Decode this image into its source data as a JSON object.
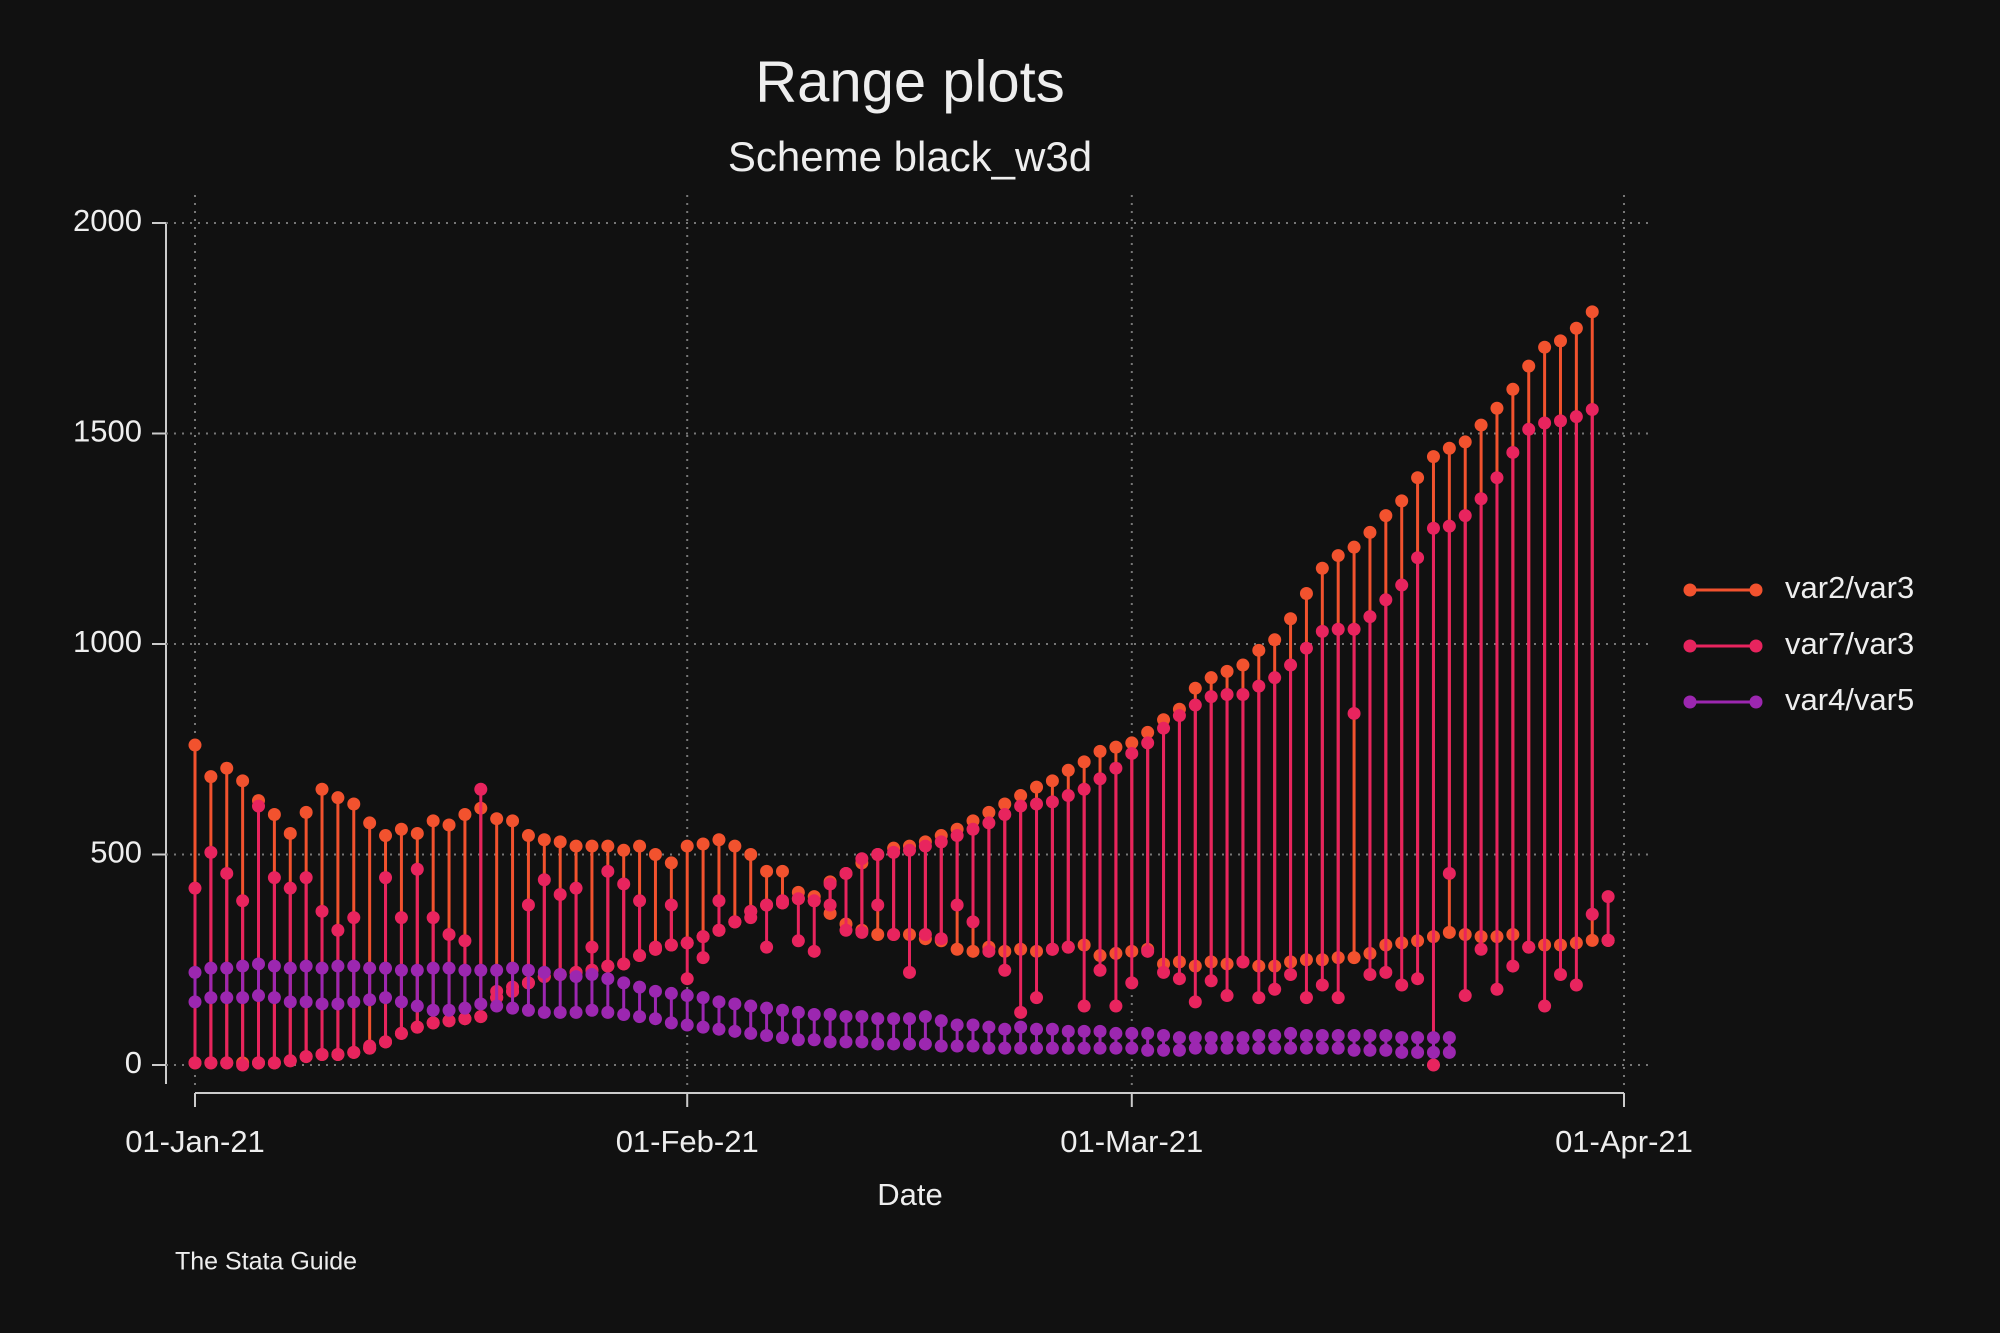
{
  "chart_data": {
    "type": "rangeplot",
    "title": "Range plots",
    "subtitle": "Scheme black_w3d",
    "x_label": "Date",
    "note": "The Stata Guide",
    "x": [
      "2021-01-01",
      "2021-01-02",
      "2021-01-03",
      "2021-01-04",
      "2021-01-05",
      "2021-01-06",
      "2021-01-07",
      "2021-01-08",
      "2021-01-09",
      "2021-01-10",
      "2021-01-11",
      "2021-01-12",
      "2021-01-13",
      "2021-01-14",
      "2021-01-15",
      "2021-01-16",
      "2021-01-17",
      "2021-01-18",
      "2021-01-19",
      "2021-01-20",
      "2021-01-21",
      "2021-01-22",
      "2021-01-23",
      "2021-01-24",
      "2021-01-25",
      "2021-01-26",
      "2021-01-27",
      "2021-01-28",
      "2021-01-29",
      "2021-01-30",
      "2021-01-31",
      "2021-02-01",
      "2021-02-02",
      "2021-02-03",
      "2021-02-04",
      "2021-02-05",
      "2021-02-06",
      "2021-02-07",
      "2021-02-08",
      "2021-02-09",
      "2021-02-10",
      "2021-02-11",
      "2021-02-12",
      "2021-02-13",
      "2021-02-14",
      "2021-02-15",
      "2021-02-16",
      "2021-02-17",
      "2021-02-18",
      "2021-02-19",
      "2021-02-20",
      "2021-02-21",
      "2021-02-22",
      "2021-02-23",
      "2021-02-24",
      "2021-02-25",
      "2021-02-26",
      "2021-02-27",
      "2021-02-28",
      "2021-03-01",
      "2021-03-02",
      "2021-03-03",
      "2021-03-04",
      "2021-03-05",
      "2021-03-06",
      "2021-03-07",
      "2021-03-08",
      "2021-03-09",
      "2021-03-10",
      "2021-03-11",
      "2021-03-12",
      "2021-03-13",
      "2021-03-14",
      "2021-03-15",
      "2021-03-16",
      "2021-03-17",
      "2021-03-18",
      "2021-03-19",
      "2021-03-20",
      "2021-03-21",
      "2021-03-22",
      "2021-03-23",
      "2021-03-24",
      "2021-03-25",
      "2021-03-26",
      "2021-03-27",
      "2021-03-28",
      "2021-03-29",
      "2021-03-30",
      "2021-03-31"
    ],
    "series": [
      {
        "name": "var2/var3",
        "color": "#f2522e",
        "high": [
          760,
          685,
          705,
          675,
          628,
          595,
          550,
          600,
          655,
          635,
          620,
          575,
          545,
          560,
          550,
          580,
          570,
          595,
          610,
          585,
          580,
          545,
          535,
          530,
          520,
          520,
          520,
          510,
          520,
          500,
          480,
          520,
          525,
          535,
          520,
          500,
          460,
          460,
          410,
          400,
          435,
          455,
          480,
          500,
          515,
          520,
          530,
          545,
          560,
          580,
          600,
          620,
          640,
          660,
          675,
          700,
          720,
          745,
          755,
          765,
          790,
          820,
          845,
          895,
          920,
          935,
          950,
          985,
          1010,
          1060,
          1120,
          1180,
          1210,
          1230,
          1265,
          1305,
          1340,
          1395,
          1445,
          1465,
          1480,
          1520,
          1560,
          1605,
          1660,
          1705,
          1720,
          1750,
          1789,
          296
        ],
        "low": [
          5,
          5,
          5,
          5,
          5,
          5,
          10,
          20,
          25,
          25,
          30,
          40,
          55,
          75,
          90,
          100,
          105,
          110,
          115,
          160,
          175,
          195,
          210,
          215,
          220,
          225,
          235,
          240,
          260,
          275,
          285,
          290,
          305,
          320,
          340,
          365,
          380,
          385,
          395,
          390,
          360,
          335,
          320,
          310,
          310,
          310,
          300,
          295,
          275,
          270,
          280,
          270,
          275,
          270,
          275,
          280,
          285,
          260,
          265,
          270,
          275,
          240,
          245,
          235,
          245,
          240,
          245,
          235,
          235,
          245,
          250,
          250,
          255,
          255,
          265,
          285,
          290,
          295,
          305,
          315,
          310,
          305,
          305,
          310,
          280,
          285,
          285,
          290,
          296,
          296
        ]
      },
      {
        "name": "var7/var3",
        "color": "#e8245e",
        "high": [
          420,
          505,
          455,
          390,
          615,
          445,
          420,
          445,
          365,
          320,
          350,
          45,
          445,
          350,
          465,
          350,
          310,
          295,
          655,
          175,
          185,
          380,
          440,
          405,
          420,
          280,
          460,
          430,
          390,
          280,
          380,
          290,
          305,
          390,
          340,
          365,
          380,
          390,
          395,
          390,
          430,
          455,
          490,
          500,
          505,
          510,
          520,
          530,
          545,
          560,
          575,
          595,
          615,
          620,
          625,
          640,
          655,
          680,
          705,
          740,
          765,
          800,
          830,
          855,
          875,
          880,
          880,
          900,
          920,
          950,
          990,
          1030,
          1035,
          1035,
          1065,
          1105,
          1140,
          1205,
          1275,
          1280,
          1305,
          1345,
          1395,
          1455,
          1510,
          1525,
          1530,
          1540,
          1557,
          400
        ],
        "low": [
          5,
          5,
          5,
          0,
          5,
          5,
          10,
          20,
          25,
          25,
          30,
          40,
          55,
          75,
          90,
          100,
          105,
          110,
          115,
          160,
          175,
          195,
          210,
          215,
          220,
          225,
          235,
          240,
          260,
          275,
          285,
          205,
          255,
          320,
          340,
          350,
          280,
          385,
          295,
          270,
          380,
          320,
          315,
          380,
          310,
          220,
          310,
          300,
          380,
          340,
          270,
          225,
          125,
          160,
          275,
          280,
          140,
          225,
          140,
          195,
          270,
          220,
          205,
          150,
          200,
          165,
          245,
          160,
          180,
          215,
          160,
          190,
          160,
          835,
          215,
          220,
          190,
          205,
          0,
          455,
          165,
          275,
          180,
          235,
          280,
          140,
          215,
          190,
          358,
          296
        ]
      },
      {
        "name": "var4/var5",
        "color": "#9c27b0",
        "high": [
          220,
          230,
          230,
          235,
          240,
          235,
          230,
          235,
          230,
          235,
          235,
          230,
          230,
          225,
          225,
          230,
          230,
          225,
          225,
          225,
          230,
          225,
          220,
          215,
          210,
          215,
          205,
          195,
          185,
          175,
          170,
          165,
          160,
          150,
          145,
          140,
          135,
          130,
          125,
          120,
          120,
          115,
          115,
          110,
          110,
          110,
          115,
          105,
          95,
          95,
          90,
          85,
          90,
          85,
          85,
          80,
          80,
          80,
          75,
          75,
          75,
          70,
          65,
          65,
          65,
          65,
          65,
          70,
          70,
          75,
          70,
          70,
          70,
          70,
          70,
          70,
          65,
          65,
          65,
          65,
          null,
          null,
          null,
          null,
          null,
          null,
          null,
          null,
          null,
          null
        ],
        "low": [
          150,
          160,
          160,
          160,
          165,
          160,
          150,
          150,
          145,
          145,
          150,
          155,
          160,
          150,
          140,
          130,
          130,
          135,
          145,
          140,
          135,
          130,
          125,
          125,
          125,
          130,
          125,
          120,
          115,
          110,
          100,
          95,
          90,
          85,
          80,
          75,
          70,
          65,
          60,
          60,
          55,
          55,
          55,
          50,
          50,
          50,
          50,
          45,
          45,
          45,
          40,
          40,
          40,
          40,
          40,
          40,
          40,
          40,
          40,
          40,
          35,
          35,
          35,
          40,
          40,
          40,
          40,
          40,
          40,
          40,
          40,
          40,
          40,
          35,
          35,
          35,
          30,
          30,
          30,
          30,
          null,
          null,
          null,
          null,
          null,
          null,
          null,
          null,
          null,
          null
        ]
      }
    ],
    "xlim": [
      "2021-01-01",
      "2021-04-01"
    ],
    "xticks": [
      {
        "value": "2021-01-01",
        "label": "01-Jan-21"
      },
      {
        "value": "2021-02-01",
        "label": "01-Feb-21"
      },
      {
        "value": "2021-03-01",
        "label": "01-Mar-21"
      },
      {
        "value": "2021-04-01",
        "label": "01-Apr-21"
      }
    ],
    "ylim": [
      0,
      2000
    ],
    "yticks": [
      0,
      500,
      1000,
      1500,
      2000
    ],
    "grid": true,
    "legend": "right"
  }
}
